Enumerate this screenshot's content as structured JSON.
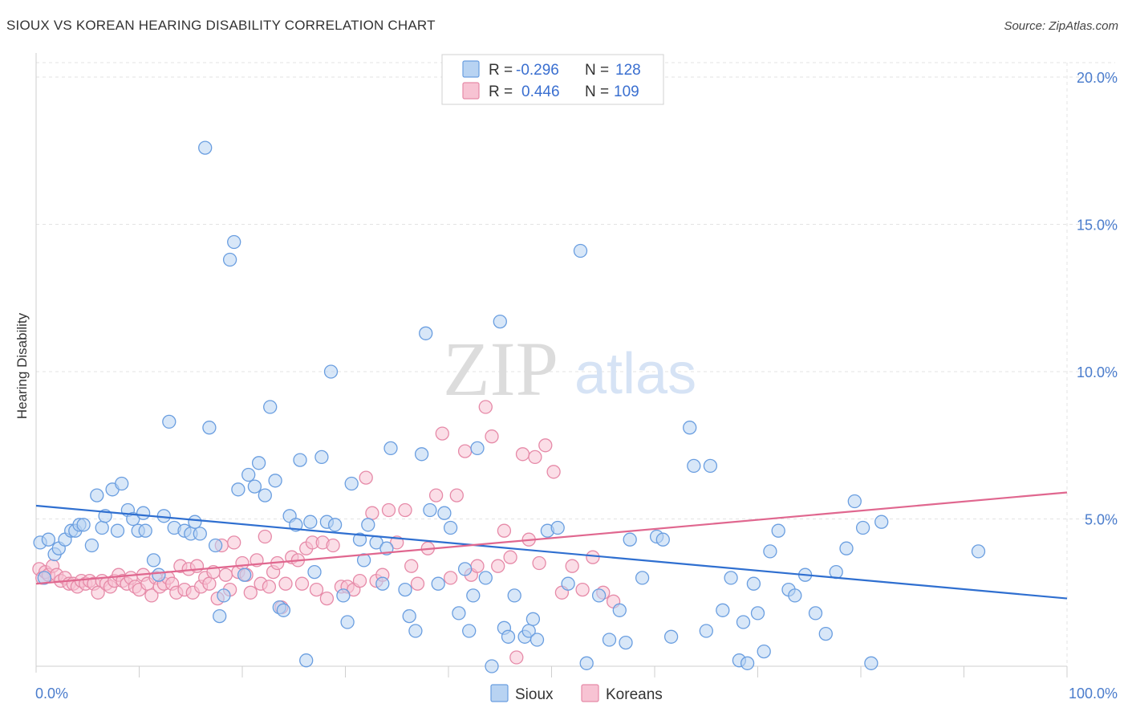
{
  "title": "SIOUX VS KOREAN HEARING DISABILITY CORRELATION CHART",
  "source": "Source: ZipAtlas.com",
  "watermark": {
    "part1": "ZIP",
    "part2": "atlas"
  },
  "colors": {
    "sioux_fill": "#b8d3f2",
    "sioux_stroke": "#6a9ee0",
    "sioux_line": "#2f6fd0",
    "koreans_fill": "#f7c3d3",
    "koreans_stroke": "#e68aa8",
    "koreans_line": "#e0678f",
    "tick": "#4a7ccc",
    "grid": "#e3e3e3"
  },
  "legend": {
    "rows": [
      {
        "r_label": "R =",
        "r_value": "-0.296",
        "n_label": "N =",
        "n_value": "128"
      },
      {
        "r_label": "R =",
        "r_value": "0.446",
        "n_label": "N =",
        "n_value": "109"
      }
    ]
  },
  "chart_data": {
    "type": "scatter",
    "title": "SIOUX VS KOREAN HEARING DISABILITY CORRELATION CHART",
    "xlabel": "",
    "ylabel": "Hearing Disability",
    "xlim": [
      0,
      100
    ],
    "ylim": [
      0,
      20.0
    ],
    "x_tick_labels": [
      "0.0%",
      "100.0%"
    ],
    "y_ticks": [
      5.0,
      10.0,
      15.0,
      20.0
    ],
    "y_tick_labels": [
      "5.0%",
      "10.0%",
      "15.0%",
      "20.0%"
    ],
    "grid": true,
    "legend_position": "top-center",
    "series": [
      {
        "name": "Sioux",
        "r": -0.296,
        "n": 128,
        "trend": {
          "x": [
            0,
            100
          ],
          "y": [
            5.45,
            2.3
          ]
        },
        "points": [
          [
            0.4,
            4.2
          ],
          [
            0.8,
            3.0
          ],
          [
            1.2,
            4.3
          ],
          [
            1.8,
            3.8
          ],
          [
            2.2,
            4.0
          ],
          [
            2.8,
            4.3
          ],
          [
            3.4,
            4.6
          ],
          [
            3.8,
            4.6
          ],
          [
            4.2,
            4.8
          ],
          [
            4.6,
            4.8
          ],
          [
            5.4,
            4.1
          ],
          [
            5.9,
            5.8
          ],
          [
            6.4,
            4.7
          ],
          [
            6.7,
            5.1
          ],
          [
            7.4,
            6.0
          ],
          [
            7.9,
            4.6
          ],
          [
            8.3,
            6.2
          ],
          [
            8.9,
            5.3
          ],
          [
            9.4,
            5.0
          ],
          [
            9.9,
            4.6
          ],
          [
            10.4,
            5.2
          ],
          [
            10.6,
            4.6
          ],
          [
            11.4,
            3.6
          ],
          [
            11.9,
            3.1
          ],
          [
            12.4,
            5.1
          ],
          [
            12.9,
            8.3
          ],
          [
            13.4,
            4.7
          ],
          [
            14.4,
            4.6
          ],
          [
            15.0,
            4.5
          ],
          [
            15.4,
            4.9
          ],
          [
            15.9,
            4.5
          ],
          [
            16.4,
            17.6
          ],
          [
            16.8,
            8.1
          ],
          [
            17.4,
            4.1
          ],
          [
            17.8,
            1.7
          ],
          [
            18.2,
            2.4
          ],
          [
            18.8,
            13.8
          ],
          [
            19.2,
            14.4
          ],
          [
            19.6,
            6.0
          ],
          [
            20.2,
            3.1
          ],
          [
            20.6,
            6.5
          ],
          [
            21.2,
            6.1
          ],
          [
            21.6,
            6.9
          ],
          [
            22.2,
            5.8
          ],
          [
            22.7,
            8.8
          ],
          [
            23.2,
            6.3
          ],
          [
            23.6,
            2.0
          ],
          [
            24.0,
            1.9
          ],
          [
            24.6,
            5.1
          ],
          [
            25.2,
            4.8
          ],
          [
            25.6,
            7.0
          ],
          [
            26.2,
            0.2
          ],
          [
            26.6,
            4.9
          ],
          [
            27.0,
            3.2
          ],
          [
            27.7,
            7.1
          ],
          [
            28.2,
            4.9
          ],
          [
            28.6,
            10.0
          ],
          [
            29.0,
            4.8
          ],
          [
            29.8,
            2.4
          ],
          [
            30.2,
            1.5
          ],
          [
            30.6,
            6.2
          ],
          [
            31.4,
            4.3
          ],
          [
            31.8,
            3.6
          ],
          [
            32.2,
            4.8
          ],
          [
            33.0,
            4.2
          ],
          [
            33.6,
            2.8
          ],
          [
            34.0,
            4.0
          ],
          [
            34.4,
            7.4
          ],
          [
            35.8,
            2.6
          ],
          [
            36.2,
            1.7
          ],
          [
            36.8,
            1.2
          ],
          [
            37.4,
            7.2
          ],
          [
            37.8,
            11.3
          ],
          [
            38.2,
            5.3
          ],
          [
            39.0,
            2.8
          ],
          [
            39.6,
            5.2
          ],
          [
            40.2,
            4.7
          ],
          [
            41.0,
            1.8
          ],
          [
            41.6,
            3.3
          ],
          [
            42.0,
            1.2
          ],
          [
            42.4,
            2.4
          ],
          [
            42.8,
            7.4
          ],
          [
            43.6,
            3.0
          ],
          [
            44.2,
            0.0
          ],
          [
            45.0,
            11.7
          ],
          [
            45.4,
            1.3
          ],
          [
            45.8,
            1.0
          ],
          [
            46.4,
            2.4
          ],
          [
            47.4,
            1.0
          ],
          [
            47.8,
            1.2
          ],
          [
            48.2,
            1.6
          ],
          [
            48.6,
            0.9
          ],
          [
            49.6,
            4.6
          ],
          [
            50.6,
            4.7
          ],
          [
            51.6,
            2.8
          ],
          [
            52.8,
            14.1
          ],
          [
            53.4,
            0.1
          ],
          [
            54.6,
            2.4
          ],
          [
            55.6,
            0.9
          ],
          [
            56.6,
            1.9
          ],
          [
            57.2,
            0.8
          ],
          [
            57.6,
            4.3
          ],
          [
            58.8,
            3.0
          ],
          [
            60.2,
            4.4
          ],
          [
            60.8,
            4.3
          ],
          [
            61.6,
            1.0
          ],
          [
            63.4,
            8.1
          ],
          [
            63.8,
            6.8
          ],
          [
            65.0,
            1.2
          ],
          [
            65.4,
            6.8
          ],
          [
            66.6,
            1.9
          ],
          [
            67.4,
            3.0
          ],
          [
            68.2,
            0.2
          ],
          [
            68.6,
            1.5
          ],
          [
            69.0,
            0.1
          ],
          [
            69.6,
            2.8
          ],
          [
            70.0,
            1.8
          ],
          [
            70.6,
            0.5
          ],
          [
            71.2,
            3.9
          ],
          [
            72.0,
            4.6
          ],
          [
            73.0,
            2.6
          ],
          [
            73.6,
            2.4
          ],
          [
            74.6,
            3.1
          ],
          [
            75.6,
            1.8
          ],
          [
            76.6,
            1.1
          ],
          [
            77.6,
            3.2
          ],
          [
            78.6,
            4.0
          ],
          [
            79.4,
            5.6
          ],
          [
            80.2,
            4.7
          ],
          [
            81.0,
            0.1
          ],
          [
            82.0,
            4.9
          ],
          [
            91.4,
            3.9
          ]
        ]
      },
      {
        "name": "Koreans",
        "r": 0.446,
        "n": 109,
        "trend": {
          "x": [
            0,
            100
          ],
          "y": [
            2.8,
            5.9
          ]
        },
        "points": [
          [
            0.3,
            3.3
          ],
          [
            0.6,
            3.0
          ],
          [
            0.9,
            3.2
          ],
          [
            1.2,
            3.1
          ],
          [
            1.6,
            3.4
          ],
          [
            2.0,
            3.1
          ],
          [
            2.4,
            2.9
          ],
          [
            2.8,
            3.0
          ],
          [
            3.2,
            2.8
          ],
          [
            3.6,
            2.8
          ],
          [
            4.0,
            2.7
          ],
          [
            4.4,
            2.9
          ],
          [
            4.8,
            2.8
          ],
          [
            5.2,
            2.9
          ],
          [
            5.6,
            2.8
          ],
          [
            6.0,
            2.5
          ],
          [
            6.4,
            2.9
          ],
          [
            6.8,
            2.8
          ],
          [
            7.2,
            2.7
          ],
          [
            7.6,
            2.9
          ],
          [
            8.0,
            3.1
          ],
          [
            8.4,
            2.9
          ],
          [
            8.8,
            2.8
          ],
          [
            9.2,
            3.0
          ],
          [
            9.6,
            2.7
          ],
          [
            10.0,
            2.6
          ],
          [
            10.4,
            3.1
          ],
          [
            10.8,
            2.8
          ],
          [
            11.2,
            2.4
          ],
          [
            11.6,
            3.0
          ],
          [
            12.0,
            2.7
          ],
          [
            12.4,
            2.8
          ],
          [
            12.8,
            3.0
          ],
          [
            13.2,
            2.8
          ],
          [
            13.6,
            2.5
          ],
          [
            14.0,
            3.4
          ],
          [
            14.4,
            2.6
          ],
          [
            14.8,
            3.3
          ],
          [
            15.2,
            2.5
          ],
          [
            15.6,
            3.4
          ],
          [
            16.0,
            2.7
          ],
          [
            16.4,
            3.0
          ],
          [
            16.8,
            2.8
          ],
          [
            17.2,
            3.2
          ],
          [
            17.6,
            2.3
          ],
          [
            18.0,
            4.1
          ],
          [
            18.4,
            3.1
          ],
          [
            18.8,
            2.6
          ],
          [
            19.2,
            4.2
          ],
          [
            19.6,
            3.2
          ],
          [
            20.0,
            3.5
          ],
          [
            20.4,
            3.1
          ],
          [
            20.8,
            2.5
          ],
          [
            21.4,
            3.6
          ],
          [
            21.8,
            2.8
          ],
          [
            22.2,
            4.4
          ],
          [
            22.6,
            2.7
          ],
          [
            23.0,
            3.2
          ],
          [
            23.4,
            3.5
          ],
          [
            23.8,
            2.0
          ],
          [
            24.2,
            2.8
          ],
          [
            24.8,
            3.7
          ],
          [
            25.4,
            3.6
          ],
          [
            25.8,
            2.8
          ],
          [
            26.2,
            4.0
          ],
          [
            26.8,
            4.2
          ],
          [
            27.2,
            2.6
          ],
          [
            27.8,
            4.2
          ],
          [
            28.2,
            2.3
          ],
          [
            28.8,
            4.1
          ],
          [
            29.6,
            2.7
          ],
          [
            30.2,
            2.7
          ],
          [
            30.8,
            2.6
          ],
          [
            31.4,
            2.9
          ],
          [
            32.0,
            6.4
          ],
          [
            32.6,
            5.2
          ],
          [
            33.0,
            2.9
          ],
          [
            33.6,
            3.1
          ],
          [
            34.2,
            5.3
          ],
          [
            35.0,
            4.2
          ],
          [
            35.8,
            5.3
          ],
          [
            36.4,
            3.4
          ],
          [
            37.0,
            2.8
          ],
          [
            38.0,
            4.0
          ],
          [
            38.8,
            5.8
          ],
          [
            39.4,
            7.9
          ],
          [
            40.2,
            3.0
          ],
          [
            40.8,
            5.8
          ],
          [
            41.6,
            7.3
          ],
          [
            42.2,
            3.1
          ],
          [
            42.8,
            3.4
          ],
          [
            43.6,
            8.8
          ],
          [
            44.2,
            7.8
          ],
          [
            44.8,
            3.4
          ],
          [
            45.4,
            4.6
          ],
          [
            46.0,
            3.7
          ],
          [
            46.6,
            0.3
          ],
          [
            47.2,
            7.2
          ],
          [
            47.8,
            4.3
          ],
          [
            48.4,
            7.1
          ],
          [
            48.8,
            3.5
          ],
          [
            49.4,
            7.5
          ],
          [
            50.2,
            6.6
          ],
          [
            51.0,
            2.5
          ],
          [
            52.0,
            3.4
          ],
          [
            53.0,
            2.6
          ],
          [
            54.0,
            3.7
          ],
          [
            55.0,
            2.5
          ],
          [
            56.0,
            2.2
          ]
        ]
      }
    ]
  },
  "bottom_legend": {
    "items": [
      "Sioux",
      "Koreans"
    ]
  }
}
